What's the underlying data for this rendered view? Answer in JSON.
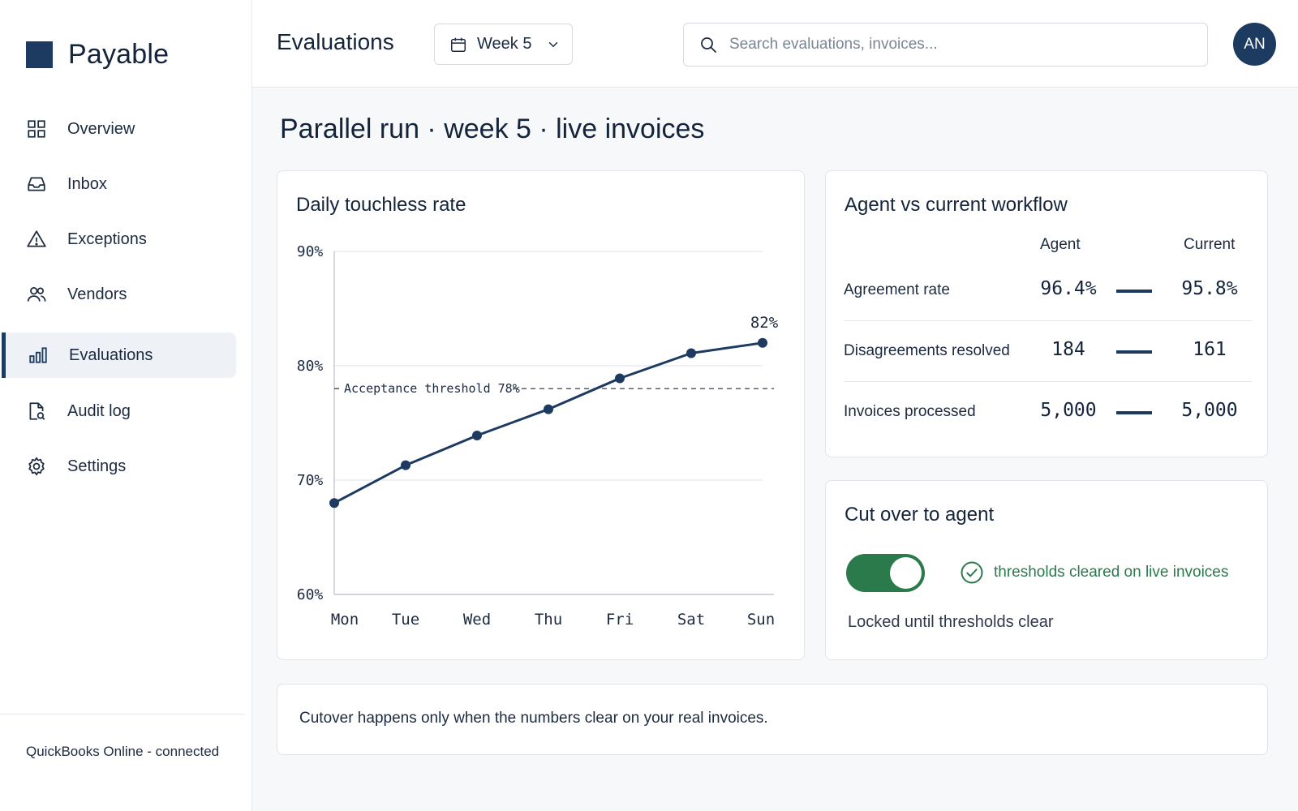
{
  "app": {
    "name": "Payable"
  },
  "sidebar": {
    "items": [
      {
        "label": "Overview",
        "icon": "grid-icon"
      },
      {
        "label": "Inbox",
        "icon": "inbox-icon"
      },
      {
        "label": "Exceptions",
        "icon": "warning-icon"
      },
      {
        "label": "Vendors",
        "icon": "users-icon"
      },
      {
        "label": "Evaluations",
        "icon": "bar-chart-icon",
        "active": true
      },
      {
        "label": "Audit log",
        "icon": "document-search-icon"
      },
      {
        "label": "Settings",
        "icon": "gear-icon"
      }
    ],
    "integration_status": "QuickBooks Online - connected"
  },
  "header": {
    "title": "Evaluations",
    "week_select": "Week 5",
    "search_placeholder": "Search evaluations, invoices...",
    "avatar_initials": "AN"
  },
  "main": {
    "headline": "Parallel run · week 5 · live invoices",
    "compare": {
      "title": "Agent vs current workflow",
      "col_agent": "Agent",
      "col_current": "Current",
      "rows": [
        {
          "label": "Agreement rate",
          "agent": "96.4%",
          "current": "95.8%"
        },
        {
          "label": "Disagreements resolved",
          "agent": "184",
          "current": "161"
        },
        {
          "label": "Invoices processed",
          "agent": "5,000",
          "current": "5,000"
        }
      ]
    },
    "cutover": {
      "title": "Cut over to agent",
      "toggle_on": true,
      "status": "thresholds cleared on live invoices",
      "lock_note": "Locked until thresholds clear"
    },
    "note": "Cutover happens only when the numbers clear on your real invoices."
  },
  "colors": {
    "accent": "#1d3a61",
    "success": "#2a7a4c"
  },
  "chart_data": {
    "type": "line",
    "title": "Daily touchless rate",
    "categories": [
      "Mon",
      "Tue",
      "Wed",
      "Thu",
      "Fri",
      "Sat",
      "Sun"
    ],
    "series": [
      {
        "values": [
          68,
          71.3,
          73.9,
          76.2,
          78.9,
          81.1,
          82.0
        ]
      }
    ],
    "ylim": [
      60,
      90
    ],
    "yticks": [
      "60%",
      "70%",
      "80%",
      "90%"
    ],
    "ytick_values": [
      60,
      70,
      80,
      90
    ],
    "threshold": {
      "value": 78,
      "label": "Acceptance threshold 78%"
    },
    "end_label": "82%",
    "grid": true
  }
}
